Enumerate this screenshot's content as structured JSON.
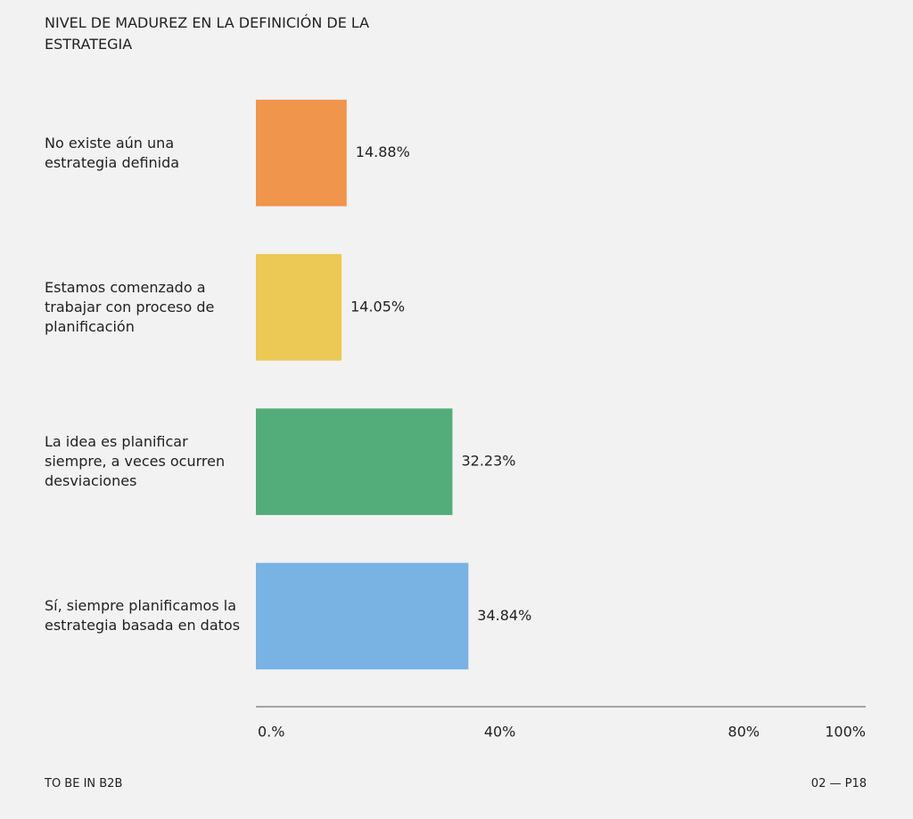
{
  "chart_data": {
    "type": "hbar",
    "title": "NIVEL DE MADUREZ EN LA DEFINICIÓN DE LA ESTRATEGIA",
    "categories": [
      "No existe aún una estrategia definida",
      "Estamos comenzado a trabajar con proceso de planificación",
      "La idea es planificar siempre, a veces ocurren desviaciones",
      "Sí, siempre planificamos la estrategia basada en datos"
    ],
    "values": [
      14.88,
      14.05,
      32.23,
      34.84
    ],
    "value_labels": [
      "14.88%",
      "14.05%",
      "32.23%",
      "34.84%"
    ],
    "colors": [
      "#f0954c",
      "#ecc954",
      "#53ad7a",
      "#78b3e4"
    ],
    "xlim": [
      0,
      100
    ],
    "xticks": [
      {
        "value": 0,
        "label": "0.%"
      },
      {
        "value": 40,
        "label": "40%"
      },
      {
        "value": 80,
        "label": "80%"
      },
      {
        "value": 100,
        "label": "100%"
      }
    ]
  },
  "footer": {
    "left": "TO BE IN B2B",
    "right": "02 — P18"
  }
}
